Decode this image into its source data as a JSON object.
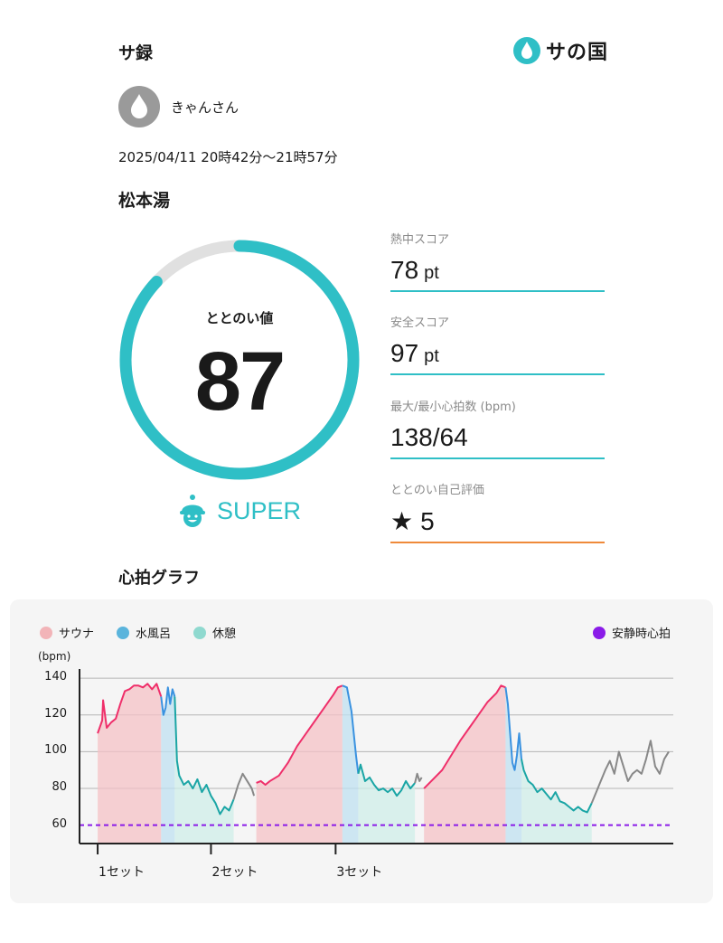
{
  "header": {
    "title": "サ録",
    "logo_text": "サの国"
  },
  "user": {
    "name": "きゃんさん"
  },
  "session": {
    "time": "2025/04/11 20時42分〜21時57分",
    "facility": "松本湯"
  },
  "totonoi": {
    "label": "ととのい値",
    "value": "87",
    "score": 87,
    "max": 100,
    "rank": "SUPER",
    "color": "#2fbfc6"
  },
  "metrics": [
    {
      "label": "熱中スコア",
      "value": "78",
      "unit": "pt"
    },
    {
      "label": "安全スコア",
      "value": "97",
      "unit": "pt"
    },
    {
      "label": "最大/最小心拍数 (bpm)",
      "value": "138/64",
      "unit": ""
    },
    {
      "label": "ととのい自己評価",
      "value": "5",
      "unit": ""
    }
  ],
  "graph": {
    "title": "心拍グラフ",
    "legend": [
      {
        "label": "サウナ",
        "color": "#f2b4b8"
      },
      {
        "label": "水風呂",
        "color": "#5ab4dc"
      },
      {
        "label": "休憩",
        "color": "#8fd9cf"
      },
      {
        "label": "安静時心拍",
        "color": "#8a1be8"
      }
    ]
  },
  "chart_data": {
    "type": "line",
    "ylabel": "(bpm)",
    "ylim": [
      50,
      145
    ],
    "yticks": [
      60,
      80,
      100,
      120,
      140
    ],
    "resting_hr": 60,
    "set_labels": [
      "1セット",
      "2セット",
      "3セット"
    ],
    "set_starts": [
      0,
      25,
      52.5
    ],
    "x_range": [
      -4,
      95
    ],
    "segments": [
      {
        "phase": "sauna",
        "points": [
          [
            0,
            110
          ],
          [
            1,
            117
          ],
          [
            1.2,
            128
          ],
          [
            2,
            113
          ],
          [
            3,
            116
          ],
          [
            4,
            118
          ],
          [
            5,
            126
          ],
          [
            6,
            133
          ],
          [
            7,
            134
          ],
          [
            8,
            136
          ],
          [
            9,
            136
          ],
          [
            10,
            135
          ],
          [
            11,
            137
          ],
          [
            12,
            134
          ],
          [
            13,
            137
          ],
          [
            14,
            130
          ]
        ]
      },
      {
        "phase": "water",
        "points": [
          [
            14,
            130
          ],
          [
            14.5,
            120
          ],
          [
            15,
            124
          ],
          [
            15.5,
            135
          ],
          [
            16,
            126
          ],
          [
            16.5,
            134
          ],
          [
            17,
            130
          ]
        ]
      },
      {
        "phase": "rest",
        "points": [
          [
            17,
            130
          ],
          [
            17.5,
            95
          ],
          [
            18,
            87
          ],
          [
            19,
            82
          ],
          [
            20,
            84
          ],
          [
            21,
            80
          ],
          [
            22,
            85
          ],
          [
            23,
            78
          ],
          [
            24,
            82
          ],
          [
            25,
            76
          ],
          [
            26,
            72
          ],
          [
            27,
            66
          ],
          [
            28,
            70
          ],
          [
            29,
            68
          ],
          [
            30,
            74
          ]
        ]
      },
      {
        "phase": "other",
        "points": [
          [
            30,
            74
          ],
          [
            31,
            82
          ],
          [
            32,
            88
          ],
          [
            33,
            84
          ],
          [
            34,
            80
          ],
          [
            34.5,
            76
          ]
        ]
      },
      {
        "phase": "sauna",
        "points": [
          [
            35,
            83
          ],
          [
            36,
            84
          ],
          [
            37,
            82
          ],
          [
            38,
            84
          ],
          [
            40,
            87
          ],
          [
            42,
            94
          ],
          [
            44,
            103
          ],
          [
            46,
            110
          ],
          [
            48,
            117
          ],
          [
            50,
            124
          ],
          [
            52,
            131
          ],
          [
            53,
            135
          ],
          [
            54,
            136
          ]
        ]
      },
      {
        "phase": "water",
        "points": [
          [
            54,
            136
          ],
          [
            55,
            135
          ],
          [
            56,
            122
          ],
          [
            56.5,
            110
          ],
          [
            57,
            98
          ],
          [
            57.5,
            88
          ]
        ]
      },
      {
        "phase": "rest",
        "points": [
          [
            57.5,
            88
          ],
          [
            58,
            93
          ],
          [
            59,
            84
          ],
          [
            60,
            86
          ],
          [
            61,
            82
          ],
          [
            62,
            79
          ],
          [
            63,
            80
          ],
          [
            64,
            78
          ],
          [
            65,
            80
          ],
          [
            66,
            76
          ],
          [
            67,
            79
          ],
          [
            68,
            84
          ],
          [
            69,
            80
          ],
          [
            70,
            83
          ]
        ]
      },
      {
        "phase": "other",
        "points": [
          [
            70,
            83
          ],
          [
            70.5,
            88
          ],
          [
            71,
            84
          ],
          [
            71.5,
            86
          ]
        ]
      },
      {
        "phase": "sauna",
        "points": [
          [
            72,
            80
          ],
          [
            74,
            85
          ],
          [
            76,
            90
          ],
          [
            78,
            98
          ],
          [
            80,
            106
          ],
          [
            82,
            113
          ],
          [
            84,
            120
          ],
          [
            86,
            127
          ],
          [
            88,
            132
          ],
          [
            89,
            136
          ],
          [
            90,
            135
          ]
        ]
      },
      {
        "phase": "water",
        "points": [
          [
            90,
            135
          ],
          [
            90.5,
            126
          ],
          [
            91,
            110
          ],
          [
            91.5,
            94
          ],
          [
            92,
            90
          ],
          [
            92.5,
            98
          ],
          [
            93,
            110
          ],
          [
            93.5,
            96
          ]
        ]
      },
      {
        "phase": "rest",
        "points": [
          [
            93.5,
            96
          ],
          [
            94,
            90
          ],
          [
            95,
            84
          ],
          [
            96,
            82
          ],
          [
            97,
            78
          ],
          [
            98,
            80
          ],
          [
            99,
            77
          ],
          [
            100,
            74
          ],
          [
            101,
            78
          ],
          [
            102,
            73
          ],
          [
            103,
            72
          ],
          [
            104,
            70
          ],
          [
            105,
            68
          ],
          [
            106,
            70
          ],
          [
            107,
            68
          ],
          [
            108,
            67
          ],
          [
            109,
            72
          ]
        ]
      },
      {
        "phase": "other",
        "points": [
          [
            109,
            72
          ],
          [
            110,
            78
          ],
          [
            111,
            84
          ],
          [
            112,
            90
          ],
          [
            113,
            95
          ],
          [
            114,
            88
          ],
          [
            115,
            100
          ],
          [
            116,
            92
          ],
          [
            117,
            84
          ],
          [
            118,
            88
          ],
          [
            119,
            90
          ],
          [
            120,
            88
          ],
          [
            121,
            96
          ],
          [
            122,
            106
          ],
          [
            123,
            92
          ],
          [
            124,
            88
          ],
          [
            125,
            96
          ],
          [
            126,
            100
          ]
        ]
      }
    ]
  }
}
